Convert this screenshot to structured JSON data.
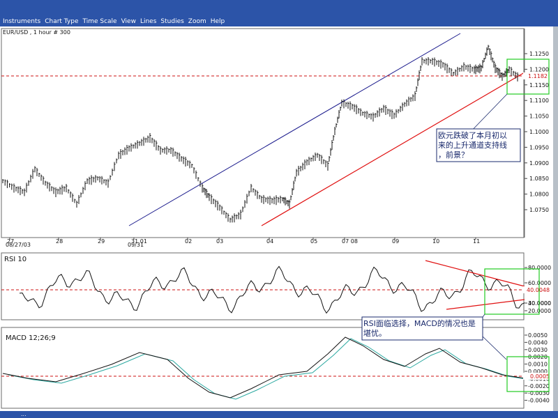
{
  "menu": {
    "items": [
      "Instruments",
      "Chart Type",
      "Time Scale",
      "View",
      "Lines",
      "Studies",
      "Zoom",
      "Help"
    ]
  },
  "price_panel": {
    "symbol_label": "EUR/USD , 1 hour # 300",
    "y_ticks": [
      "1.1250",
      "1.1200",
      "1.1150",
      "1.1100",
      "1.1050",
      "1.1000",
      "1.0950",
      "1.0900",
      "1.0850",
      "1.0800",
      "1.0750"
    ],
    "current_price": "1.1182",
    "x_ticks": [
      "27",
      "28",
      "29",
      "31 01",
      "02",
      "03",
      "04",
      "05",
      "07 08",
      "09",
      "10",
      "11"
    ],
    "date_label_1": "08/27/03",
    "date_label_2": "09/31",
    "annotation_line1": "欧元跌破了本月初以",
    "annotation_line2": "来的上升通道支持线",
    "annotation_line3": "，前景？"
  },
  "rsi_panel": {
    "title": "RSI 10",
    "y_ticks": [
      "80.0000",
      "60.0000",
      "40.0000",
      "20.0000"
    ],
    "extra_tick": "30.0000",
    "current_value": "40.0048",
    "annotation_line1": "RSI面临选择，MACD的情况也是",
    "annotation_line2": "堪忧。"
  },
  "macd_panel": {
    "title": "MACD 12;26;9",
    "y_ticks": [
      "0.0050",
      "0.0040",
      "0.0030",
      "0.0020",
      "0.0010",
      "0.0000",
      "-0.0010",
      "-0.0020",
      "-0.0030",
      "-0.0040"
    ],
    "current_value": "0.0005"
  },
  "status": {
    "cell_1": "..."
  },
  "colors": {
    "menu_bg": "#2c54a8",
    "channel_upper": "#1a1a8c",
    "channel_lower": "#e01010",
    "dashed_level": "#cc1010",
    "highlight_box": "#22cc22",
    "annotation_border": "#1a2a6c",
    "macd_signal": "#2aa8a0"
  }
}
